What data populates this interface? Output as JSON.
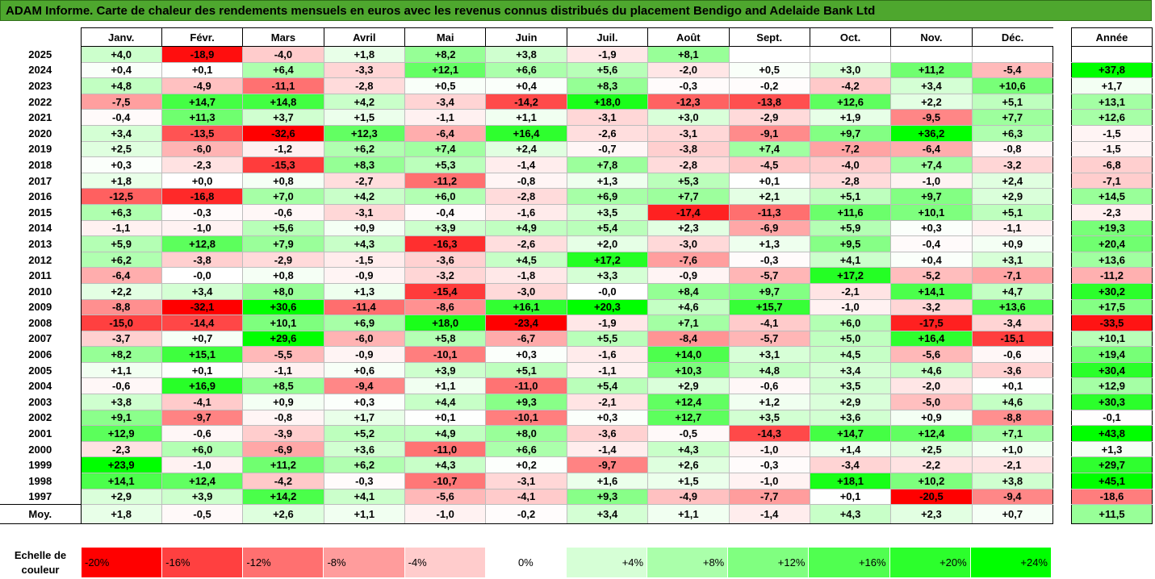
{
  "title": "ADAM Informe. Carte de chaleur des rendements mensuels en euros avec les revenus connus distribués du placement Bendigo and Adelaide Bank Ltd",
  "chart_data": {
    "type": "heatmap",
    "months": [
      "Janv.",
      "Févr.",
      "Mars",
      "Avril",
      "Mai",
      "Juin",
      "Juil.",
      "Août",
      "Sept.",
      "Oct.",
      "Nov.",
      "Déc."
    ],
    "annual_label": "Année",
    "avg_label": "Moy.",
    "rows": [
      {
        "year": "2025",
        "values": [
          4.0,
          -18.9,
          -4.0,
          1.8,
          8.2,
          3.8,
          -1.9,
          8.1,
          null,
          null,
          null,
          null
        ],
        "annual": null
      },
      {
        "year": "2024",
        "values": [
          0.4,
          0.1,
          6.4,
          -3.3,
          12.1,
          6.6,
          5.6,
          -2.0,
          0.5,
          3.0,
          11.2,
          -5.4
        ],
        "annual": 37.8
      },
      {
        "year": "2023",
        "values": [
          4.8,
          -4.9,
          -11.1,
          -2.8,
          0.5,
          0.4,
          8.3,
          -0.3,
          -0.2,
          -4.2,
          3.4,
          10.6
        ],
        "annual": 1.7
      },
      {
        "year": "2022",
        "values": [
          -7.5,
          14.7,
          14.8,
          4.2,
          -3.4,
          -14.2,
          18.0,
          -12.3,
          -13.8,
          12.6,
          2.2,
          5.1
        ],
        "annual": 13.1
      },
      {
        "year": "2021",
        "values": [
          -0.4,
          11.3,
          3.7,
          1.5,
          -1.1,
          1.1,
          -3.1,
          3.0,
          -2.9,
          1.9,
          -9.5,
          7.7
        ],
        "annual": 12.6
      },
      {
        "year": "2020",
        "values": [
          3.4,
          -13.5,
          -32.6,
          12.3,
          -6.4,
          16.4,
          -2.6,
          -3.1,
          -9.1,
          9.7,
          36.2,
          6.3
        ],
        "annual": -1.5
      },
      {
        "year": "2019",
        "values": [
          2.5,
          -6.0,
          -1.2,
          6.2,
          7.4,
          2.4,
          -0.7,
          -3.8,
          7.4,
          -7.2,
          -6.4,
          -0.8
        ],
        "annual": -1.5
      },
      {
        "year": "2018",
        "values": [
          0.3,
          -2.3,
          -15.3,
          8.3,
          5.3,
          -1.4,
          7.8,
          -2.8,
          -4.5,
          -4.0,
          7.4,
          -3.2
        ],
        "annual": -6.8
      },
      {
        "year": "2017",
        "values": [
          1.8,
          0.0,
          0.8,
          -2.7,
          -11.2,
          -0.8,
          1.3,
          5.3,
          0.1,
          -2.8,
          -1.0,
          2.4
        ],
        "annual": -7.1
      },
      {
        "year": "2016",
        "values": [
          -12.5,
          -16.8,
          7.0,
          4.2,
          6.0,
          -2.8,
          6.9,
          7.7,
          2.1,
          5.1,
          9.7,
          2.9
        ],
        "annual": 14.5
      },
      {
        "year": "2015",
        "values": [
          6.3,
          -0.3,
          -0.6,
          -3.1,
          -0.4,
          -1.6,
          3.5,
          -17.4,
          -11.3,
          11.6,
          10.1,
          5.1
        ],
        "annual": -2.3
      },
      {
        "year": "2014",
        "values": [
          -1.1,
          -1.0,
          5.6,
          0.9,
          3.9,
          4.9,
          5.4,
          2.3,
          -6.9,
          5.9,
          0.3,
          -1.1
        ],
        "annual": 19.3
      },
      {
        "year": "2013",
        "values": [
          5.9,
          12.8,
          7.9,
          4.3,
          -16.3,
          -2.6,
          2.0,
          -3.0,
          1.3,
          9.5,
          -0.4,
          0.9
        ],
        "annual": 20.4
      },
      {
        "year": "2012",
        "values": [
          6.2,
          -3.8,
          -2.9,
          -1.5,
          -3.6,
          4.5,
          17.2,
          -7.6,
          -0.3,
          4.1,
          0.4,
          3.1
        ],
        "annual": 13.6
      },
      {
        "year": "2011",
        "values": [
          -6.4,
          -0.0,
          0.8,
          -0.9,
          -3.2,
          -1.8,
          3.3,
          -0.9,
          -5.7,
          17.2,
          -5.2,
          -7.1
        ],
        "annual": -11.2
      },
      {
        "year": "2010",
        "values": [
          2.2,
          3.4,
          8.0,
          1.3,
          -15.4,
          -3.0,
          -0.0,
          8.4,
          9.7,
          -2.1,
          14.1,
          4.7
        ],
        "annual": 30.2
      },
      {
        "year": "2009",
        "values": [
          -8.8,
          -32.1,
          30.6,
          -11.4,
          -8.6,
          16.1,
          20.3,
          4.6,
          15.7,
          -1.0,
          -3.2,
          13.6
        ],
        "annual": 17.5
      },
      {
        "year": "2008",
        "values": [
          -15.0,
          -14.4,
          10.1,
          6.9,
          18.0,
          -23.4,
          -1.9,
          7.1,
          -4.1,
          6.0,
          -17.5,
          -3.4
        ],
        "annual": -33.5
      },
      {
        "year": "2007",
        "values": [
          -3.7,
          0.7,
          29.6,
          -6.0,
          5.8,
          -6.7,
          5.5,
          -8.4,
          -5.7,
          5.0,
          16.4,
          -15.1
        ],
        "annual": 10.1
      },
      {
        "year": "2006",
        "values": [
          8.2,
          15.1,
          -5.5,
          -0.9,
          -10.1,
          0.3,
          -1.6,
          14.0,
          3.1,
          4.5,
          -5.6,
          -0.6
        ],
        "annual": 19.4
      },
      {
        "year": "2005",
        "values": [
          1.1,
          0.1,
          -1.1,
          0.6,
          3.9,
          5.1,
          -1.1,
          10.3,
          4.8,
          3.4,
          4.6,
          -3.6
        ],
        "annual": 30.4
      },
      {
        "year": "2004",
        "values": [
          -0.6,
          16.9,
          8.5,
          -9.4,
          1.1,
          -11.0,
          5.4,
          2.9,
          -0.6,
          3.5,
          -2.0,
          0.1
        ],
        "annual": 12.9
      },
      {
        "year": "2003",
        "values": [
          3.8,
          -4.1,
          0.9,
          0.3,
          4.4,
          9.3,
          -2.1,
          12.4,
          1.2,
          2.9,
          -5.0,
          4.6
        ],
        "annual": 30.3
      },
      {
        "year": "2002",
        "values": [
          9.1,
          -9.7,
          -0.8,
          1.7,
          0.1,
          -10.1,
          0.3,
          12.7,
          3.5,
          3.6,
          0.9,
          -8.8
        ],
        "annual": -0.1
      },
      {
        "year": "2001",
        "values": [
          12.9,
          -0.6,
          -3.9,
          5.2,
          4.9,
          8.0,
          -3.6,
          -0.5,
          -14.3,
          14.7,
          12.4,
          7.1
        ],
        "annual": 43.8
      },
      {
        "year": "2000",
        "values": [
          -2.3,
          6.0,
          -6.9,
          3.6,
          -11.0,
          6.6,
          -1.4,
          4.3,
          -1.0,
          1.4,
          2.5,
          1.0
        ],
        "annual": 1.3
      },
      {
        "year": "1999",
        "values": [
          23.9,
          -1.0,
          11.2,
          6.2,
          4.3,
          0.2,
          -9.7,
          2.6,
          -0.3,
          -3.4,
          -2.2,
          -2.1
        ],
        "annual": 29.7
      },
      {
        "year": "1998",
        "values": [
          14.1,
          12.4,
          -4.2,
          -0.3,
          -10.7,
          -3.1,
          1.6,
          1.5,
          -1.0,
          18.1,
          10.2,
          3.8
        ],
        "annual": 45.1
      },
      {
        "year": "1997",
        "values": [
          2.9,
          3.9,
          14.2,
          4.1,
          -5.6,
          -4.1,
          9.3,
          -4.9,
          -7.7,
          0.1,
          -20.5,
          -9.4
        ],
        "annual": -18.6
      }
    ],
    "averages": [
      1.8,
      -0.5,
      2.6,
      1.1,
      -1.0,
      -0.2,
      3.4,
      1.1,
      -1.4,
      4.3,
      2.3,
      0.7
    ],
    "annual_average": 11.5,
    "scale_label_line1": "Echelle de",
    "scale_label_line2": "couleur",
    "scale": [
      {
        "label": "-20%",
        "value": -20,
        "color": "#ff0000"
      },
      {
        "label": "-16%",
        "value": -16,
        "color": "#ff4040"
      },
      {
        "label": "-12%",
        "value": -12,
        "color": "#ff7070"
      },
      {
        "label": "-8%",
        "value": -8,
        "color": "#ff9c9c"
      },
      {
        "label": "-4%",
        "value": -4,
        "color": "#ffcccc"
      },
      {
        "label": "0%",
        "value": 0,
        "color": "#ffffff"
      },
      {
        "label": "+4%",
        "value": 4,
        "color": "#d6ffd6"
      },
      {
        "label": "+8%",
        "value": 8,
        "color": "#aaffaa"
      },
      {
        "label": "+12%",
        "value": 12,
        "color": "#80ff80"
      },
      {
        "label": "+16%",
        "value": 16,
        "color": "#50ff50"
      },
      {
        "label": "+20%",
        "value": 20,
        "color": "#2cff2c"
      },
      {
        "label": "+24%",
        "value": 24,
        "color": "#00ff00"
      }
    ],
    "colors": {
      "title_bar": "#4ea72e",
      "negative_max": "#ff0000",
      "positive_max": "#00ff00",
      "neutral": "#ffffff"
    }
  }
}
